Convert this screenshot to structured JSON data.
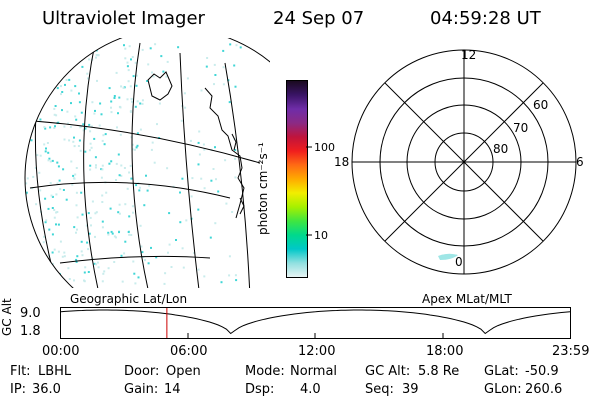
{
  "header": {
    "instrument": "Ultraviolet Imager",
    "date": "24 Sep 07",
    "time": "04:59:28 UT"
  },
  "colorbar": {
    "unit_label": "photon cm⁻²s⁻¹",
    "tick_labels": [
      "100",
      "10"
    ],
    "colors": [
      "#1a0a1f",
      "#3a1466",
      "#6f2da8",
      "#8b2a85",
      "#c0143c",
      "#f01e1e",
      "#ff6a14",
      "#ffaa00",
      "#f2ee00",
      "#a6f000",
      "#40e640",
      "#00d98c",
      "#00c8c8",
      "#90e0e0",
      "#e8f4f4"
    ]
  },
  "polar_plot": {
    "mlt_labels": {
      "top": "12",
      "left": "18",
      "right": "6",
      "bottom": "0"
    },
    "lat_labels": [
      "60",
      "70",
      "80"
    ]
  },
  "geo_map": {
    "emission_color": "#3fd6d6",
    "land_outline_color": "#000000"
  },
  "timeline": {
    "left_title": "Geographic Lat/Lon",
    "right_title": "Apex MLat/MLT",
    "y_axis_label": "GC Alt",
    "y_ticks": [
      "9.0",
      "1.8"
    ],
    "x_ticks": [
      "00:00",
      "06:00",
      "12:00",
      "18:00",
      "23:59"
    ],
    "current_time_marker_color": "#cc0000",
    "current_time_fraction": 0.208
  },
  "status": {
    "row1": [
      {
        "label": "Flt:",
        "value": "LBHL"
      },
      {
        "label": "Door:",
        "value": "Open"
      },
      {
        "label": "Mode:",
        "value": "Normal"
      },
      {
        "label": "GC Alt:",
        "value": "5.8 Re"
      },
      {
        "label": "GLat:",
        "value": "-50.9"
      }
    ],
    "row2": [
      {
        "label": "IP:",
        "value": "36.0"
      },
      {
        "label": "Gain:",
        "value": "14"
      },
      {
        "label": "Dsp:",
        "value": "4.0"
      },
      {
        "label": "Seq:",
        "value": "39"
      },
      {
        "label": "GLon:",
        "value": "260.6"
      }
    ]
  }
}
